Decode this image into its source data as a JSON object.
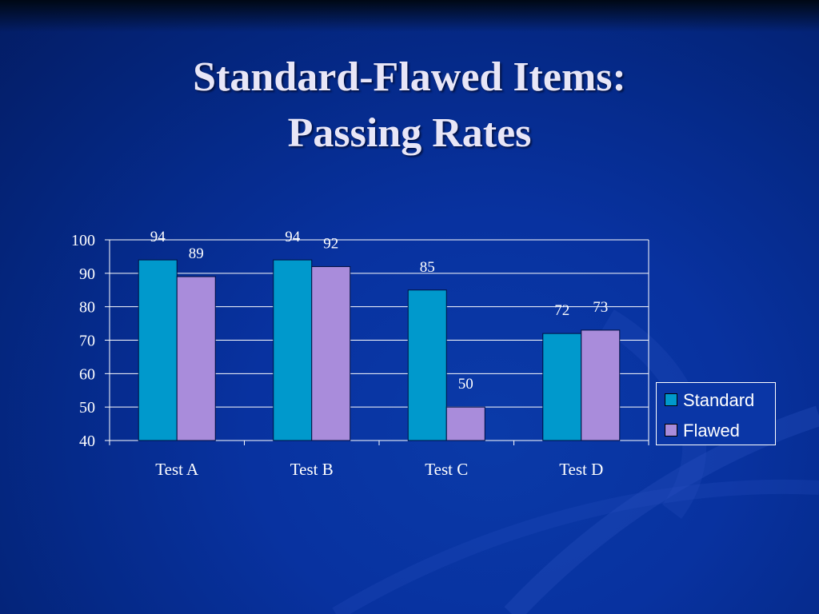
{
  "slide": {
    "title_line1": "Standard-Flawed Items:",
    "title_line2": "Passing Rates"
  },
  "colors": {
    "standard": "#0099cc",
    "flawed": "#a98cdb",
    "text": "#ffffff"
  },
  "chart_data": {
    "type": "bar",
    "categories": [
      "Test A",
      "Test B",
      "Test C",
      "Test D"
    ],
    "series": [
      {
        "name": "Standard",
        "values": [
          94,
          94,
          85,
          72
        ]
      },
      {
        "name": "Flawed",
        "values": [
          89,
          92,
          50,
          73
        ]
      }
    ],
    "ylim": [
      40,
      100
    ],
    "yticks": [
      40,
      50,
      60,
      70,
      80,
      90,
      100
    ],
    "grid": true,
    "legend": "right"
  }
}
